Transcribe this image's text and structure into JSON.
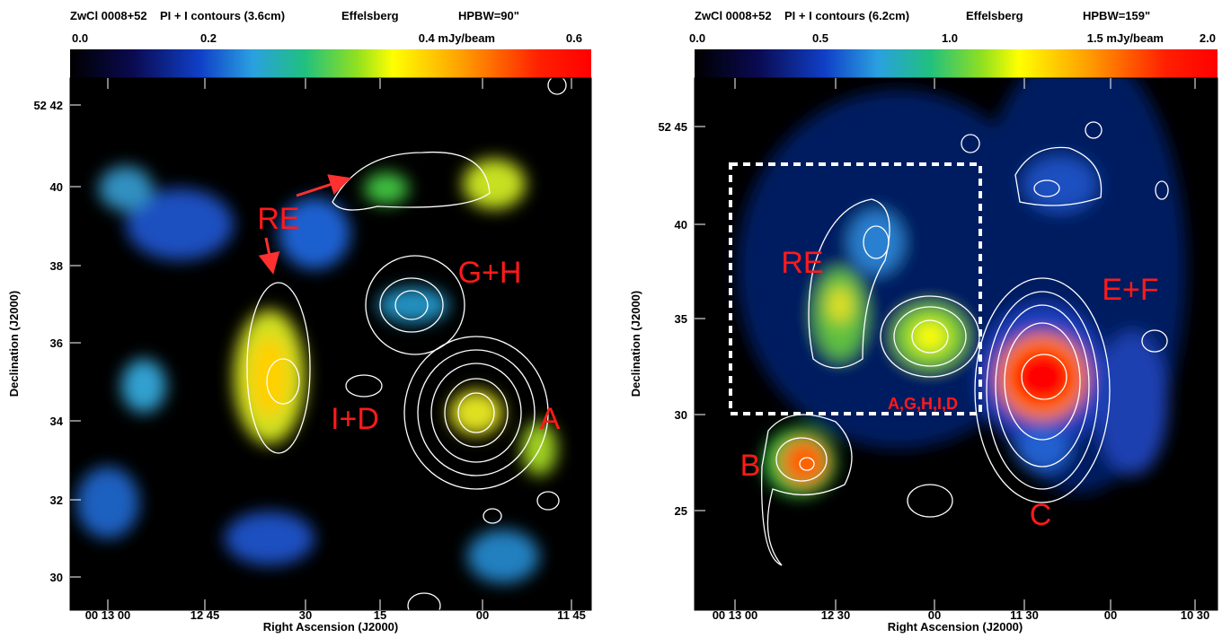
{
  "panels": [
    {
      "title": [
        "ZwCl 0008+52",
        "PI + I contours (3.6cm)",
        "Effelsberg",
        "HPBW=90\""
      ],
      "colorbar_ticks": [
        "0.0",
        "0.2",
        "0.4 mJy/beam",
        "0.6"
      ],
      "x_ticks": [
        "00 13 00",
        "12 45",
        "30",
        "15",
        "00",
        "11 45"
      ],
      "y_ticks": [
        "52 42",
        "40",
        "38",
        "36",
        "34",
        "32",
        "30"
      ],
      "x_label": "Right Ascension (J2000)",
      "y_label": "Declination (J2000)",
      "annotations": [
        "RE",
        "G+H",
        "I+D",
        "A"
      ]
    },
    {
      "title": [
        "ZwCl 0008+52",
        "PI + I contours (6.2cm)",
        "Effelsberg",
        "HPBW=159\""
      ],
      "colorbar_ticks": [
        "0.0",
        "0.5",
        "1.0",
        "1.5 mJy/beam",
        "2.0"
      ],
      "x_ticks": [
        "00 13 00",
        "12 30",
        "00",
        "11 30",
        "00",
        "10 30"
      ],
      "y_ticks": [
        "52 45",
        "40",
        "35",
        "30",
        "25"
      ],
      "x_label": "Right Ascension (J2000)",
      "y_label": "Declination (J2000)",
      "annotations": [
        "RE",
        "E+F",
        "A,G,H,I,D",
        "B",
        "C"
      ]
    }
  ]
}
